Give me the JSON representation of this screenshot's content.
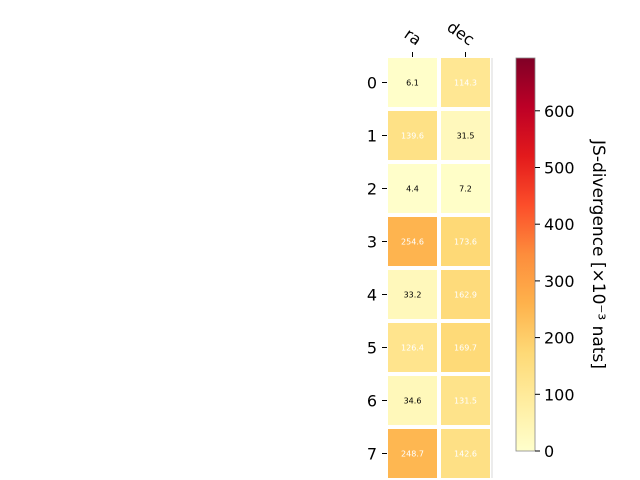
{
  "chart_data": {
    "type": "heatmap",
    "x_categories": [
      "ra",
      "dec"
    ],
    "y_categories": [
      "0",
      "1",
      "2",
      "3",
      "4",
      "5",
      "6",
      "7"
    ],
    "values": [
      [
        6.1,
        114.3
      ],
      [
        139.6,
        31.5
      ],
      [
        4.4,
        7.2
      ],
      [
        254.6,
        173.6
      ],
      [
        33.2,
        162.9
      ],
      [
        126.4,
        169.7
      ],
      [
        34.6,
        131.5
      ],
      [
        248.7,
        142.6
      ]
    ],
    "cell_labels": [
      [
        "6.1",
        "114.3"
      ],
      [
        "139.6",
        "31.5"
      ],
      [
        "4.4",
        "7.2"
      ],
      [
        "254.6",
        "173.6"
      ],
      [
        "33.2",
        "162.9"
      ],
      [
        "126.4",
        "169.7"
      ],
      [
        "34.6",
        "131.5"
      ],
      [
        "248.7",
        "142.6"
      ]
    ],
    "colorbar": {
      "label": "JS-divergence [×10⁻³ nats]",
      "range": [
        0,
        693.1
      ],
      "ticks": [
        "0",
        "100",
        "200",
        "300",
        "400",
        "500",
        "600"
      ],
      "colormap": "YlOrRd",
      "colors": [
        "#ffffcc",
        "#ffeda0",
        "#fed976",
        "#feb24c",
        "#fd8d3c",
        "#fc4e2a",
        "#e31a1c",
        "#bd0026",
        "#800026"
      ]
    }
  }
}
